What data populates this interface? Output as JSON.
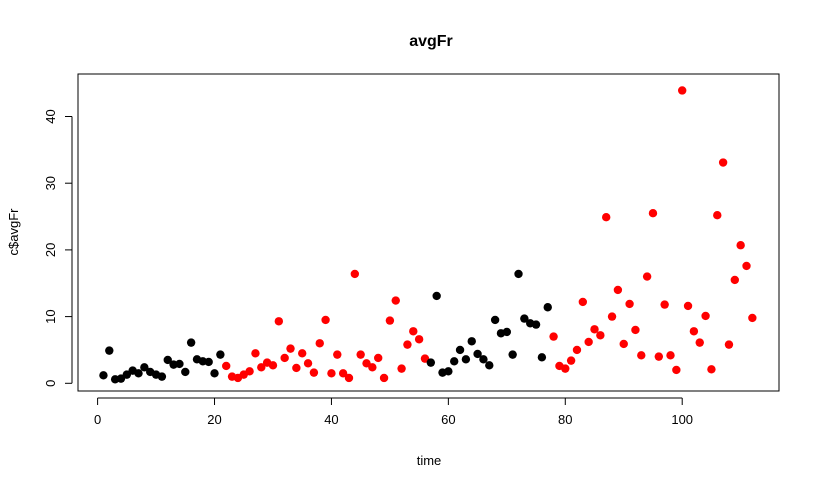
{
  "chart_data": {
    "type": "scatter",
    "title": "avgFr",
    "xlabel": "time",
    "ylabel": "c$avgFr",
    "xlim": [
      0,
      112
    ],
    "ylim": [
      0,
      45
    ],
    "xticks": [
      0,
      20,
      40,
      60,
      80,
      100
    ],
    "yticks": [
      0,
      10,
      20,
      30,
      40
    ],
    "grid": false,
    "colors": {
      "black": "#000000",
      "red": "#ff0000"
    },
    "points": [
      {
        "x": 1,
        "y": 1.2,
        "color": "black"
      },
      {
        "x": 2,
        "y": 4.9,
        "color": "black"
      },
      {
        "x": 3,
        "y": 0.6,
        "color": "black"
      },
      {
        "x": 4,
        "y": 0.7,
        "color": "black"
      },
      {
        "x": 5,
        "y": 1.3,
        "color": "black"
      },
      {
        "x": 6,
        "y": 1.9,
        "color": "black"
      },
      {
        "x": 7,
        "y": 1.5,
        "color": "black"
      },
      {
        "x": 8,
        "y": 2.4,
        "color": "black"
      },
      {
        "x": 9,
        "y": 1.7,
        "color": "black"
      },
      {
        "x": 10,
        "y": 1.3,
        "color": "black"
      },
      {
        "x": 11,
        "y": 1.0,
        "color": "black"
      },
      {
        "x": 12,
        "y": 3.5,
        "color": "black"
      },
      {
        "x": 13,
        "y": 2.8,
        "color": "black"
      },
      {
        "x": 14,
        "y": 2.9,
        "color": "black"
      },
      {
        "x": 15,
        "y": 1.7,
        "color": "black"
      },
      {
        "x": 16,
        "y": 6.1,
        "color": "black"
      },
      {
        "x": 17,
        "y": 3.6,
        "color": "black"
      },
      {
        "x": 18,
        "y": 3.3,
        "color": "black"
      },
      {
        "x": 19,
        "y": 3.2,
        "color": "black"
      },
      {
        "x": 20,
        "y": 1.5,
        "color": "black"
      },
      {
        "x": 21,
        "y": 4.3,
        "color": "black"
      },
      {
        "x": 22,
        "y": 2.6,
        "color": "red"
      },
      {
        "x": 23,
        "y": 1.0,
        "color": "red"
      },
      {
        "x": 24,
        "y": 0.8,
        "color": "red"
      },
      {
        "x": 25,
        "y": 1.3,
        "color": "red"
      },
      {
        "x": 26,
        "y": 1.8,
        "color": "red"
      },
      {
        "x": 27,
        "y": 4.5,
        "color": "red"
      },
      {
        "x": 28,
        "y": 2.4,
        "color": "red"
      },
      {
        "x": 29,
        "y": 3.1,
        "color": "red"
      },
      {
        "x": 30,
        "y": 2.7,
        "color": "red"
      },
      {
        "x": 31,
        "y": 9.3,
        "color": "red"
      },
      {
        "x": 32,
        "y": 3.8,
        "color": "red"
      },
      {
        "x": 33,
        "y": 5.2,
        "color": "red"
      },
      {
        "x": 34,
        "y": 2.3,
        "color": "red"
      },
      {
        "x": 35,
        "y": 4.5,
        "color": "red"
      },
      {
        "x": 36,
        "y": 3.0,
        "color": "red"
      },
      {
        "x": 37,
        "y": 1.6,
        "color": "red"
      },
      {
        "x": 38,
        "y": 6.0,
        "color": "red"
      },
      {
        "x": 39,
        "y": 9.5,
        "color": "red"
      },
      {
        "x": 40,
        "y": 1.5,
        "color": "red"
      },
      {
        "x": 41,
        "y": 4.3,
        "color": "red"
      },
      {
        "x": 42,
        "y": 1.5,
        "color": "red"
      },
      {
        "x": 43,
        "y": 0.8,
        "color": "red"
      },
      {
        "x": 44,
        "y": 16.4,
        "color": "red"
      },
      {
        "x": 45,
        "y": 4.3,
        "color": "red"
      },
      {
        "x": 46,
        "y": 3.0,
        "color": "red"
      },
      {
        "x": 47,
        "y": 2.4,
        "color": "red"
      },
      {
        "x": 48,
        "y": 3.8,
        "color": "red"
      },
      {
        "x": 49,
        "y": 0.8,
        "color": "red"
      },
      {
        "x": 50,
        "y": 9.4,
        "color": "red"
      },
      {
        "x": 51,
        "y": 12.4,
        "color": "red"
      },
      {
        "x": 52,
        "y": 2.2,
        "color": "red"
      },
      {
        "x": 53,
        "y": 5.8,
        "color": "red"
      },
      {
        "x": 54,
        "y": 7.8,
        "color": "red"
      },
      {
        "x": 55,
        "y": 6.6,
        "color": "red"
      },
      {
        "x": 56,
        "y": 3.7,
        "color": "red"
      },
      {
        "x": 57,
        "y": 3.1,
        "color": "black"
      },
      {
        "x": 58,
        "y": 13.1,
        "color": "black"
      },
      {
        "x": 59,
        "y": 1.6,
        "color": "black"
      },
      {
        "x": 60,
        "y": 1.8,
        "color": "black"
      },
      {
        "x": 61,
        "y": 3.3,
        "color": "black"
      },
      {
        "x": 62,
        "y": 5.0,
        "color": "black"
      },
      {
        "x": 63,
        "y": 3.6,
        "color": "black"
      },
      {
        "x": 64,
        "y": 6.3,
        "color": "black"
      },
      {
        "x": 65,
        "y": 4.4,
        "color": "black"
      },
      {
        "x": 66,
        "y": 3.6,
        "color": "black"
      },
      {
        "x": 67,
        "y": 2.7,
        "color": "black"
      },
      {
        "x": 68,
        "y": 9.5,
        "color": "black"
      },
      {
        "x": 69,
        "y": 7.5,
        "color": "black"
      },
      {
        "x": 70,
        "y": 7.7,
        "color": "black"
      },
      {
        "x": 71,
        "y": 4.3,
        "color": "black"
      },
      {
        "x": 72,
        "y": 16.4,
        "color": "black"
      },
      {
        "x": 73,
        "y": 9.7,
        "color": "black"
      },
      {
        "x": 74,
        "y": 9.0,
        "color": "black"
      },
      {
        "x": 75,
        "y": 8.8,
        "color": "black"
      },
      {
        "x": 76,
        "y": 3.9,
        "color": "black"
      },
      {
        "x": 77,
        "y": 11.4,
        "color": "black"
      },
      {
        "x": 78,
        "y": 7.0,
        "color": "red"
      },
      {
        "x": 79,
        "y": 2.6,
        "color": "red"
      },
      {
        "x": 80,
        "y": 2.2,
        "color": "red"
      },
      {
        "x": 81,
        "y": 3.4,
        "color": "red"
      },
      {
        "x": 82,
        "y": 5.0,
        "color": "red"
      },
      {
        "x": 83,
        "y": 12.2,
        "color": "red"
      },
      {
        "x": 84,
        "y": 6.2,
        "color": "red"
      },
      {
        "x": 85,
        "y": 8.1,
        "color": "red"
      },
      {
        "x": 86,
        "y": 7.2,
        "color": "red"
      },
      {
        "x": 87,
        "y": 24.9,
        "color": "red"
      },
      {
        "x": 88,
        "y": 10.0,
        "color": "red"
      },
      {
        "x": 89,
        "y": 14.0,
        "color": "red"
      },
      {
        "x": 90,
        "y": 5.9,
        "color": "red"
      },
      {
        "x": 91,
        "y": 11.9,
        "color": "red"
      },
      {
        "x": 92,
        "y": 8.0,
        "color": "red"
      },
      {
        "x": 93,
        "y": 4.2,
        "color": "red"
      },
      {
        "x": 94,
        "y": 16.0,
        "color": "red"
      },
      {
        "x": 95,
        "y": 25.5,
        "color": "red"
      },
      {
        "x": 96,
        "y": 4.0,
        "color": "red"
      },
      {
        "x": 97,
        "y": 11.8,
        "color": "red"
      },
      {
        "x": 98,
        "y": 4.2,
        "color": "red"
      },
      {
        "x": 99,
        "y": 2.0,
        "color": "red"
      },
      {
        "x": 100,
        "y": 43.9,
        "color": "red"
      },
      {
        "x": 101,
        "y": 11.6,
        "color": "red"
      },
      {
        "x": 102,
        "y": 7.8,
        "color": "red"
      },
      {
        "x": 103,
        "y": 6.1,
        "color": "red"
      },
      {
        "x": 104,
        "y": 10.1,
        "color": "red"
      },
      {
        "x": 105,
        "y": 2.1,
        "color": "red"
      },
      {
        "x": 106,
        "y": 25.2,
        "color": "red"
      },
      {
        "x": 107,
        "y": 33.1,
        "color": "red"
      },
      {
        "x": 108,
        "y": 5.8,
        "color": "red"
      },
      {
        "x": 109,
        "y": 15.5,
        "color": "red"
      },
      {
        "x": 110,
        "y": 20.7,
        "color": "red"
      },
      {
        "x": 111,
        "y": 17.6,
        "color": "red"
      },
      {
        "x": 112,
        "y": 9.8,
        "color": "red"
      }
    ]
  }
}
